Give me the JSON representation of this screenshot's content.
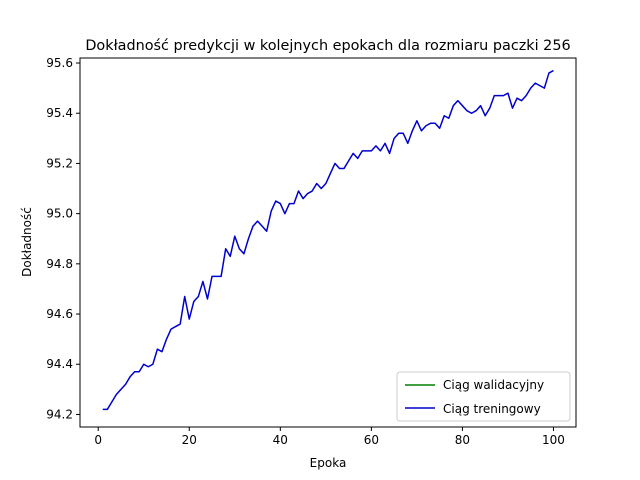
{
  "chart_data": {
    "type": "line",
    "title": "Dokładność predykcji w kolejnych epokach dla rozmiaru paczki 256",
    "xlabel": "Epoka",
    "ylabel": "Dokładność",
    "xlim": [
      -4,
      104.95
    ],
    "ylim": [
      94.15,
      95.62
    ],
    "xticks": [
      0,
      20,
      40,
      60,
      80,
      100
    ],
    "yticks": [
      94.2,
      94.4,
      94.6,
      94.8,
      95.0,
      95.2,
      95.4,
      95.6
    ],
    "ytick_labels": [
      "94.2",
      "94.4",
      "94.6",
      "94.8",
      "95.0",
      "95.2",
      "95.4",
      "95.6"
    ],
    "grid": false,
    "legend_position": "lower-right",
    "series": [
      {
        "name": "Ciąg walidacyjny",
        "color": "#008000",
        "x": [],
        "values": []
      },
      {
        "name": "Ciąg treningowy",
        "color": "#0000cc",
        "x": [
          1,
          2,
          3,
          4,
          5,
          6,
          7,
          8,
          9,
          10,
          11,
          12,
          13,
          14,
          15,
          16,
          17,
          18,
          19,
          20,
          21,
          22,
          23,
          24,
          25,
          26,
          27,
          28,
          29,
          30,
          31,
          32,
          33,
          34,
          35,
          36,
          37,
          38,
          39,
          40,
          41,
          42,
          43,
          44,
          45,
          46,
          47,
          48,
          49,
          50,
          51,
          52,
          53,
          54,
          55,
          56,
          57,
          58,
          59,
          60,
          61,
          62,
          63,
          64,
          65,
          66,
          67,
          68,
          69,
          70,
          71,
          72,
          73,
          74,
          75,
          76,
          77,
          78,
          79,
          80,
          81,
          82,
          83,
          84,
          85,
          86,
          87,
          88,
          89,
          90,
          91,
          92,
          93,
          94,
          95,
          96,
          97,
          98,
          99,
          100
        ],
        "values": [
          94.22,
          94.22,
          94.25,
          94.28,
          94.3,
          94.32,
          94.35,
          94.37,
          94.37,
          94.4,
          94.39,
          94.4,
          94.46,
          94.45,
          94.5,
          94.54,
          94.55,
          94.56,
          94.67,
          94.58,
          94.65,
          94.67,
          94.73,
          94.66,
          94.75,
          94.75,
          94.75,
          94.86,
          94.83,
          94.91,
          94.86,
          94.84,
          94.9,
          94.95,
          94.97,
          94.95,
          94.93,
          95.01,
          95.05,
          95.04,
          95.0,
          95.04,
          95.04,
          95.09,
          95.06,
          95.08,
          95.09,
          95.12,
          95.1,
          95.12,
          95.16,
          95.2,
          95.18,
          95.18,
          95.21,
          95.24,
          95.22,
          95.25,
          95.25,
          95.25,
          95.27,
          95.25,
          95.28,
          95.24,
          95.3,
          95.32,
          95.32,
          95.28,
          95.33,
          95.37,
          95.33,
          95.35,
          95.36,
          95.36,
          95.34,
          95.39,
          95.38,
          95.43,
          95.45,
          95.43,
          95.41,
          95.4,
          95.41,
          95.43,
          95.39,
          95.42,
          95.47,
          95.47,
          95.47,
          95.48,
          95.42,
          95.46,
          95.45,
          95.47,
          95.5,
          95.52,
          95.51,
          95.5,
          95.56,
          95.57
        ]
      }
    ]
  }
}
